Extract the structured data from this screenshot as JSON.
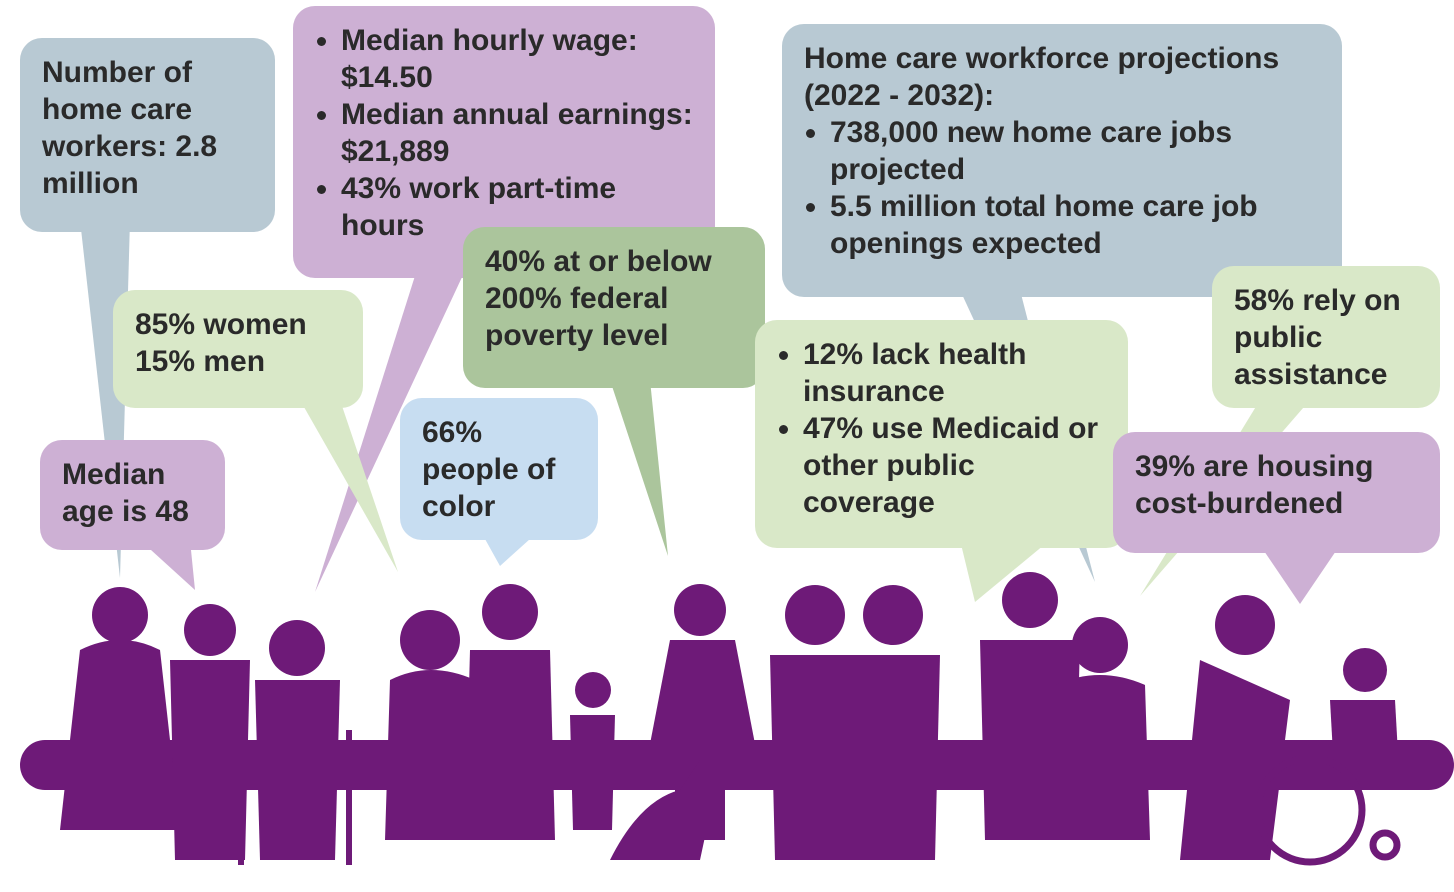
{
  "bubbles": [
    {
      "text": "Number of home care workers: 2.8 million"
    },
    {
      "items": [
        "Median hourly wage: $14.50",
        "Median annual earnings: $21,889",
        "43% work part-time hours"
      ]
    },
    {
      "lines": [
        "85% women",
        "15% men"
      ]
    },
    {
      "text": "40% at or below 200% federal poverty level"
    },
    {
      "text": "66% people of color"
    },
    {
      "text": "Median age is 48"
    },
    {
      "title": "Home care workforce projections (2022 - 2032):",
      "items": [
        [
          "738,000 ",
          "new",
          " home care jobs projected"
        ],
        [
          "5.5 million ",
          "total",
          " home care job openings expected"
        ]
      ]
    },
    {
      "items": [
        "12% lack health insurance",
        "47% use Medicaid or other public coverage"
      ]
    },
    {
      "text": "58% rely on public assistance"
    },
    {
      "text": "39% are housing cost-burdened"
    }
  ]
}
